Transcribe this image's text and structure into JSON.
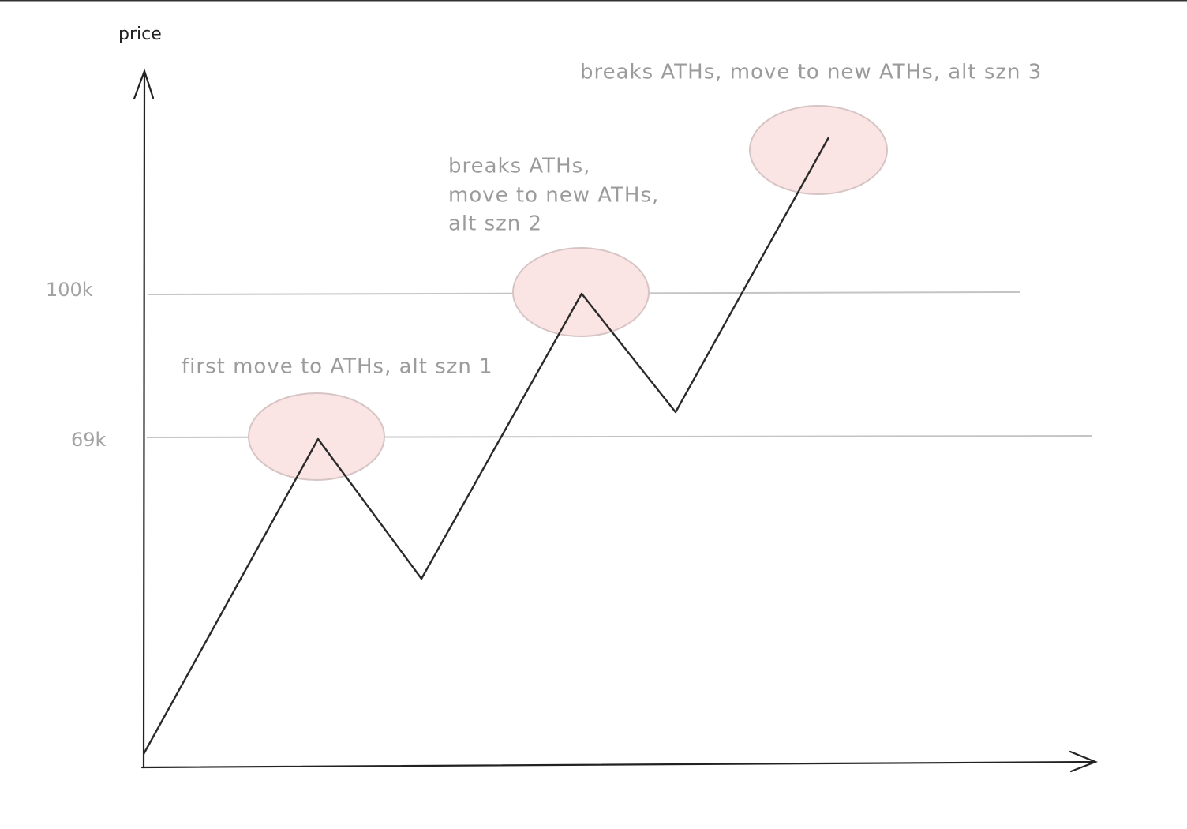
{
  "axis_label": "price",
  "levels": [
    {
      "label": "100k"
    },
    {
      "label": "69k"
    }
  ],
  "annotations": [
    {
      "lines": [
        "first move to ATHs, alt szn 1"
      ]
    },
    {
      "lines": [
        "breaks ATHs,",
        "move to new ATHs,",
        "alt szn 2"
      ]
    },
    {
      "lines": [
        "breaks ATHs, move to new ATHs, alt szn 3"
      ]
    }
  ]
}
